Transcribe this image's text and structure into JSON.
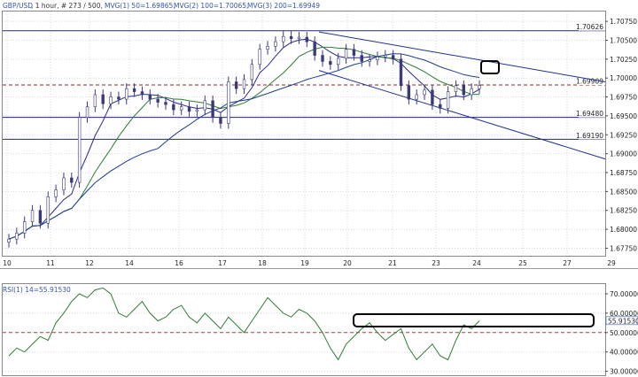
{
  "header": {
    "symbol": "GBP/USD",
    "info": ", 1 hour, # 273 / 500,",
    "mvg1": "MVG(1) 50=1.69865,",
    "mvg2": "MVG(2) 100=1.70065,",
    "mvg3": "MVG(3) 200=1.69949",
    "rsi": "RSI(1) 14=55.91530"
  },
  "colors": {
    "candle": "#3a3a7a",
    "ma50": "#2a2a8a",
    "ma100": "#2e7d32",
    "ma200": "#1f3f8f",
    "trend": "#1f2f8f",
    "hline": "#222a66",
    "current_price": "#8a2a2a",
    "rsi_line": "#2e7d32",
    "rsi_mid": "#cc3333",
    "annotation": "#000000"
  },
  "chart_data": [
    {
      "type": "candlestick",
      "title": "GBP/USD",
      "x_ticks": [
        "10",
        "11",
        "12",
        "14",
        "16",
        "17",
        "18",
        "19",
        "20",
        "21",
        "23",
        "24",
        "25",
        "27",
        "29"
      ],
      "y_ticks": [
        "1.70750",
        "1.70500",
        "1.70250",
        "1.70000",
        "1.69750",
        "1.69500",
        "1.69250",
        "1.69000",
        "1.68750",
        "1.68500",
        "1.68250",
        "1.68000",
        "1.67750"
      ],
      "ylim": [
        1.6765,
        1.7088
      ],
      "horizontal_lines": [
        {
          "value": 1.70626,
          "label": "1.70626"
        },
        {
          "value": 1.69909,
          "label": "1.69909",
          "style": "dashed"
        },
        {
          "value": 1.6948,
          "label": "1.69480"
        },
        {
          "value": 1.6919,
          "label": "1.69190"
        }
      ],
      "trendlines": [
        {
          "from": {
            "x": "19.8",
            "y": 1.7061
          },
          "to": {
            "x": "31",
            "y": 1.6995
          }
        },
        {
          "from": {
            "x": "19.8",
            "y": 1.701
          },
          "to": {
            "x": "31",
            "y": 1.6893
          }
        }
      ],
      "series": [
        {
          "name": "MVG(1) 50",
          "value": 1.69865
        },
        {
          "name": "MVG(2) 100",
          "value": 1.70065
        },
        {
          "name": "MVG(3) 200",
          "value": 1.69949
        }
      ],
      "close": [
        1.6787,
        1.6795,
        1.681,
        1.6825,
        1.6808,
        1.6843,
        1.6852,
        1.6868,
        1.6862,
        1.6948,
        1.6962,
        1.6978,
        1.6966,
        1.6975,
        1.6972,
        1.6986,
        1.6982,
        1.6978,
        1.6972,
        1.6968,
        1.6965,
        1.6958,
        1.6962,
        1.6956,
        1.6958,
        1.697,
        1.6948,
        1.694,
        1.6995,
        1.6986,
        1.6998,
        1.7018,
        1.7038,
        1.7042,
        1.7048,
        1.7055,
        1.7052,
        1.7054,
        1.7048,
        1.703,
        1.7022,
        1.7018,
        1.7026,
        1.7038,
        1.703,
        1.7022,
        1.7024,
        1.7028,
        1.703,
        1.7025,
        1.699,
        1.6972,
        1.6978,
        1.6984,
        1.6965,
        1.696,
        1.6982,
        1.699,
        1.6978,
        1.6986,
        1.699
      ]
    },
    {
      "type": "line",
      "title": "RSI(1) 14",
      "y_ticks": [
        "70.00000",
        "60.00000",
        "50.00000",
        "40.00000",
        "30.00000"
      ],
      "ylim": [
        28,
        75
      ],
      "reference_line": 50,
      "current_value": "55.91530",
      "values": [
        38,
        42,
        40,
        44,
        48,
        46,
        55,
        60,
        66,
        70,
        68,
        72,
        73,
        70,
        60,
        58,
        62,
        66,
        60,
        56,
        58,
        62,
        64,
        58,
        55,
        60,
        56,
        52,
        58,
        54,
        50,
        56,
        62,
        68,
        64,
        60,
        58,
        62,
        60,
        56,
        50,
        42,
        36,
        44,
        48,
        52,
        55,
        50,
        46,
        49,
        52,
        42,
        36,
        40,
        44,
        38,
        36,
        46,
        54,
        52,
        56
      ]
    }
  ]
}
